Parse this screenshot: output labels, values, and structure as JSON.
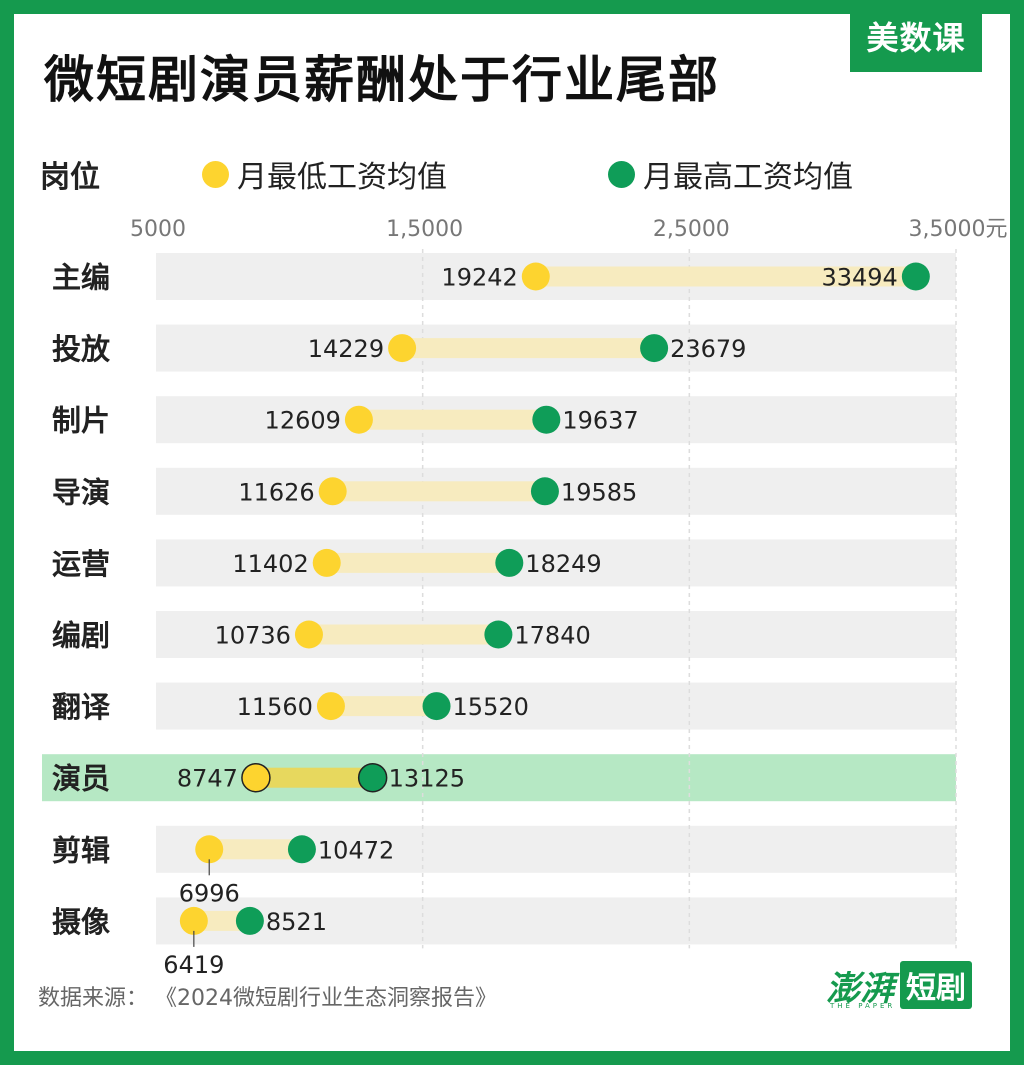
{
  "brand": "美数课",
  "title": "微短剧演员薪酬处于行业尾部",
  "legend": {
    "header": "岗位",
    "low_label": "月最低工资均值",
    "high_label": "月最高工资均值",
    "low_color": "#fdd42f",
    "high_color": "#0f9d58"
  },
  "footer": {
    "source": "数据来源：  《2024微短剧行业生态洞察报告》"
  },
  "logo": {
    "text1": "澎湃",
    "text2": "短剧",
    "tagline": "THE PAPER"
  },
  "colors": {
    "frame": "#159a4e",
    "row_bg": "#efefef",
    "highlight_bg": "#b6e8c4",
    "range_bar": "#f7ebbf",
    "highlight_range_bar": "#e7d85e"
  },
  "chart_data": {
    "type": "dumbbell",
    "x_ticks": [
      "5000",
      "1,5000",
      "2,5000",
      "3,5000元"
    ],
    "x_tick_values": [
      5000,
      15000,
      25000,
      35000
    ],
    "xlim": [
      5000,
      35000
    ],
    "grid": "vertical dashed",
    "highlight_category": "演员",
    "categories": [
      "主编",
      "投放",
      "制片",
      "导演",
      "运营",
      "编剧",
      "翻译",
      "演员",
      "剪辑",
      "摄像"
    ],
    "series": [
      {
        "name": "月最低工资均值",
        "values": [
          19242,
          14229,
          12609,
          11626,
          11402,
          10736,
          11560,
          8747,
          6996,
          6419
        ]
      },
      {
        "name": "月最高工资均值",
        "values": [
          33494,
          23679,
          19637,
          19585,
          18249,
          17840,
          15520,
          13125,
          10472,
          8521
        ]
      }
    ],
    "low_label_position": [
      "left",
      "left",
      "left",
      "left",
      "left",
      "left",
      "left",
      "left",
      "below",
      "below"
    ]
  }
}
